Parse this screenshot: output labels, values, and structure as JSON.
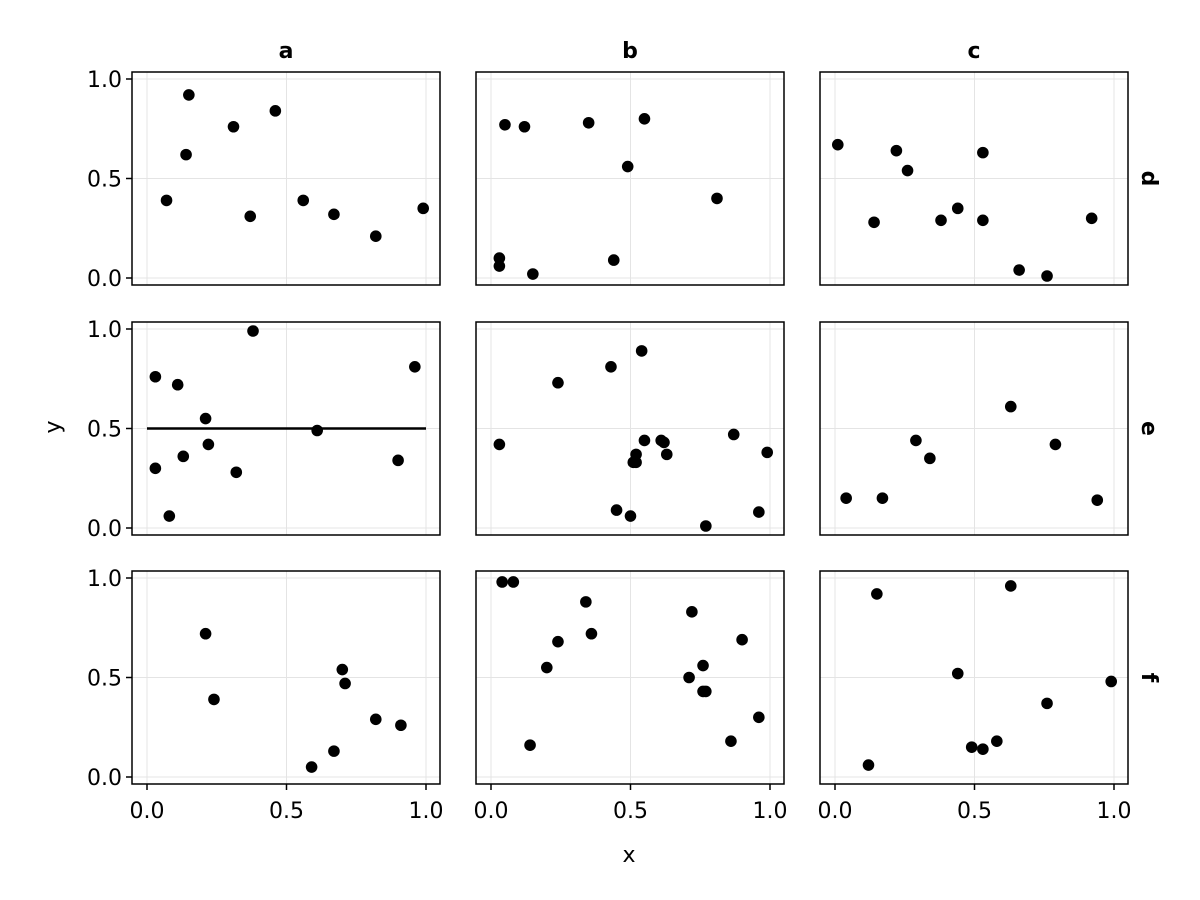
{
  "chart_data": {
    "type": "scatter",
    "layout": "facet-grid",
    "x_label": "x",
    "y_label": "y",
    "xlim": [
      0,
      1
    ],
    "ylim": [
      0,
      1
    ],
    "x_ticks": [
      "0.0",
      "0.5",
      "1.0"
    ],
    "y_ticks": [
      "0.0",
      "0.5",
      "1.0"
    ],
    "x_tick_values": [
      0,
      0.5,
      1
    ],
    "y_tick_values": [
      0,
      0.5,
      1
    ],
    "grid": true,
    "columns": [
      "a",
      "b",
      "c"
    ],
    "rows": [
      "d",
      "e",
      "f"
    ],
    "point_color": "#000000",
    "panels": [
      {
        "row": "d",
        "col": "a",
        "x": [
          0.07,
          0.15,
          0.14,
          0.31,
          0.37,
          0.46,
          0.56,
          0.67,
          0.82,
          0.99
        ],
        "y": [
          0.39,
          0.92,
          0.62,
          0.76,
          0.31,
          0.84,
          0.39,
          0.32,
          0.21,
          0.35
        ]
      },
      {
        "row": "d",
        "col": "b",
        "x": [
          0.05,
          0.12,
          0.35,
          0.55,
          0.49,
          0.81,
          0.03,
          0.03,
          0.15,
          0.44
        ],
        "y": [
          0.77,
          0.76,
          0.78,
          0.8,
          0.56,
          0.4,
          0.1,
          0.06,
          0.02,
          0.09
        ]
      },
      {
        "row": "d",
        "col": "c",
        "x": [
          0.01,
          0.22,
          0.26,
          0.53,
          0.14,
          0.38,
          0.44,
          0.53,
          0.66,
          0.76,
          0.92
        ],
        "y": [
          0.67,
          0.64,
          0.54,
          0.63,
          0.28,
          0.29,
          0.35,
          0.29,
          0.04,
          0.01,
          0.3
        ]
      },
      {
        "row": "e",
        "col": "a",
        "x": [
          0.03,
          0.03,
          0.08,
          0.11,
          0.13,
          0.21,
          0.22,
          0.32,
          0.38,
          0.61,
          0.9,
          0.96
        ],
        "y": [
          0.76,
          0.3,
          0.06,
          0.72,
          0.36,
          0.55,
          0.42,
          0.28,
          0.99,
          0.49,
          0.34,
          0.81
        ],
        "hline": 0.5
      },
      {
        "row": "e",
        "col": "b",
        "x": [
          0.03,
          0.24,
          0.43,
          0.54,
          0.45,
          0.5,
          0.51,
          0.52,
          0.55,
          0.52,
          0.61,
          0.62,
          0.63,
          0.77,
          0.87,
          0.96,
          0.99
        ],
        "y": [
          0.42,
          0.73,
          0.81,
          0.89,
          0.09,
          0.06,
          0.33,
          0.37,
          0.44,
          0.33,
          0.44,
          0.43,
          0.37,
          0.01,
          0.47,
          0.08,
          0.38
        ]
      },
      {
        "row": "e",
        "col": "c",
        "x": [
          0.04,
          0.17,
          0.29,
          0.34,
          0.63,
          0.79,
          0.94
        ],
        "y": [
          0.15,
          0.15,
          0.44,
          0.35,
          0.61,
          0.42,
          0.14
        ]
      },
      {
        "row": "f",
        "col": "a",
        "x": [
          0.21,
          0.24,
          0.7,
          0.71,
          0.67,
          0.59,
          0.82,
          0.91
        ],
        "y": [
          0.72,
          0.39,
          0.54,
          0.47,
          0.13,
          0.05,
          0.29,
          0.26
        ]
      },
      {
        "row": "f",
        "col": "b",
        "x": [
          0.04,
          0.08,
          0.34,
          0.36,
          0.24,
          0.2,
          0.14,
          0.72,
          0.71,
          0.76,
          0.76,
          0.77,
          0.9,
          0.86,
          0.96
        ],
        "y": [
          0.98,
          0.98,
          0.88,
          0.72,
          0.68,
          0.55,
          0.16,
          0.83,
          0.5,
          0.56,
          0.43,
          0.43,
          0.69,
          0.18,
          0.3
        ]
      },
      {
        "row": "f",
        "col": "c",
        "x": [
          0.15,
          0.12,
          0.44,
          0.49,
          0.53,
          0.58,
          0.63,
          0.76,
          0.99
        ],
        "y": [
          0.92,
          0.06,
          0.52,
          0.15,
          0.14,
          0.18,
          0.96,
          0.37,
          0.48
        ]
      }
    ]
  }
}
